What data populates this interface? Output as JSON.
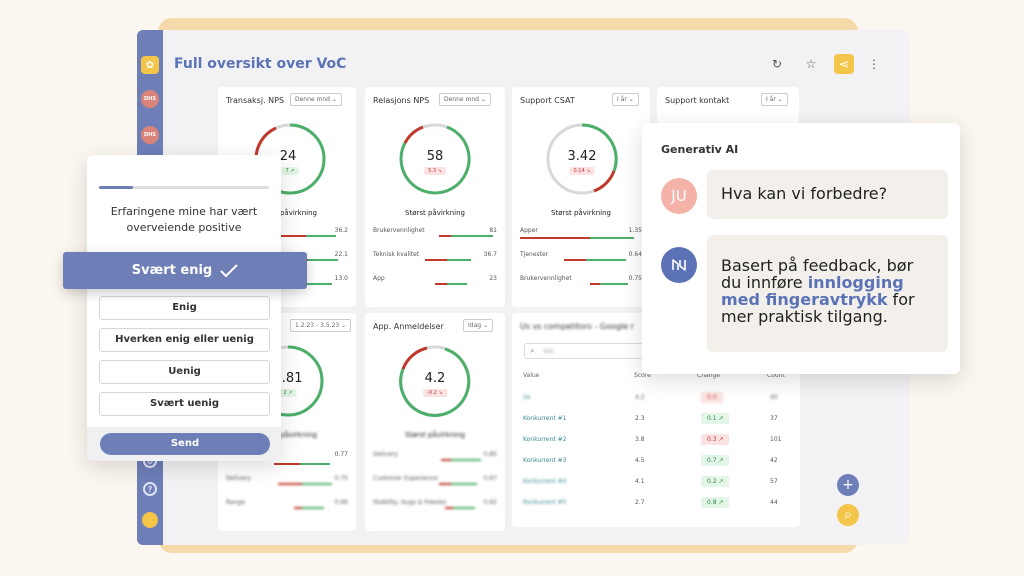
{
  "page": {
    "title": "Full oversikt over VoC"
  },
  "sidebar": {
    "avatar1": "DHS",
    "avatar2": "DHS"
  },
  "cards": {
    "nps_trans": {
      "title": "Transaksj. NPS",
      "period": "Denne mnd",
      "value": "24",
      "change": "7",
      "impact": "Størst påvirkning",
      "rows": [
        {
          "v": "36.2"
        },
        {
          "v": "22.1"
        },
        {
          "v": "13.0"
        }
      ]
    },
    "nps_rel": {
      "title": "Relasjons NPS",
      "period": "Denne mnd",
      "value": "58",
      "change": "5.3",
      "impact": "Størst påvirkning",
      "rows": [
        {
          "l": "Brukervennlighet",
          "v": "81"
        },
        {
          "l": "Teknisk kvalitet",
          "v": "36.7"
        },
        {
          "l": "App",
          "v": "23"
        }
      ]
    },
    "csat": {
      "title": "Support CSAT",
      "period": "I år",
      "value": "3.42",
      "change": "0.14",
      "impact": "Størst påvirkning",
      "rows": [
        {
          "l": "Apper",
          "v": "1.35"
        },
        {
          "l": "Tjenester",
          "v": "0.64"
        },
        {
          "l": "Brukervennlighet",
          "v": "0.75"
        }
      ]
    },
    "support": {
      "title": "Support kontakt",
      "period": "I år"
    },
    "card5": {
      "period": "1.2.23 - 3.5.23",
      "value": "3.81",
      "change": "2",
      "impact": "Størst påvirkning",
      "rows": [
        {
          "v": "0.77"
        },
        {
          "l": "Delivery",
          "v": "0.75"
        },
        {
          "l": "Range",
          "v": "0.66"
        }
      ]
    },
    "app": {
      "title": "App. Anmeldelser",
      "period": "Idag",
      "value": "4.2",
      "change": "-0.2",
      "impact": "Størst påvirkning",
      "rows": [
        {
          "l": "Delivery",
          "v": "0.85"
        },
        {
          "l": "Customer Experience",
          "v": "0.67"
        },
        {
          "l": "Stability, bugs & freezes",
          "v": "0.62"
        }
      ]
    },
    "comp": {
      "title": "Us vs competitors - Google r",
      "search_placeholder": "Søk",
      "headers": {
        "value": "Value",
        "score": "Score",
        "change": "Change",
        "count": "Count"
      },
      "rows": [
        {
          "name": "Us",
          "score": "4.2",
          "change": "0.0",
          "count": "45"
        },
        {
          "name": "Konkurrent #1",
          "score": "2.3",
          "change": "0.1",
          "count": "37"
        },
        {
          "name": "Konkurrent #2",
          "score": "3.8",
          "change": "0.3",
          "count": "101"
        },
        {
          "name": "Konkurrent #3",
          "score": "4.5",
          "change": "0.7",
          "count": "42"
        },
        {
          "name": "Konkurrent #4",
          "score": "4.1",
          "change": "0.2",
          "count": "57"
        },
        {
          "name": "Konkurrent #5",
          "score": "2.7",
          "change": "0.8",
          "count": "44"
        }
      ]
    }
  },
  "survey": {
    "progress": 0.2,
    "question": "Erfaringene mine har vært overveiende positive",
    "selected": "Svært enig",
    "options": [
      "Enig",
      "Hverken enig eller uenig",
      "Uenig",
      "Svært uenig"
    ],
    "send": "Send"
  },
  "ai": {
    "title": "Generativ AI",
    "user_initials": "JU",
    "user_message": "Hva kan vi forbedre?",
    "reply_pre": "Basert på feedback, bør du innføre ",
    "reply_highlight": "innlogging med fingeravtrykk",
    "reply_post": " for mer praktisk tilgang."
  },
  "colors": {
    "accent": "#6e7fb8",
    "brand": "#5b73b6",
    "yellow": "#f3c64a",
    "red": "#c0392b",
    "green": "#4caf6a"
  }
}
